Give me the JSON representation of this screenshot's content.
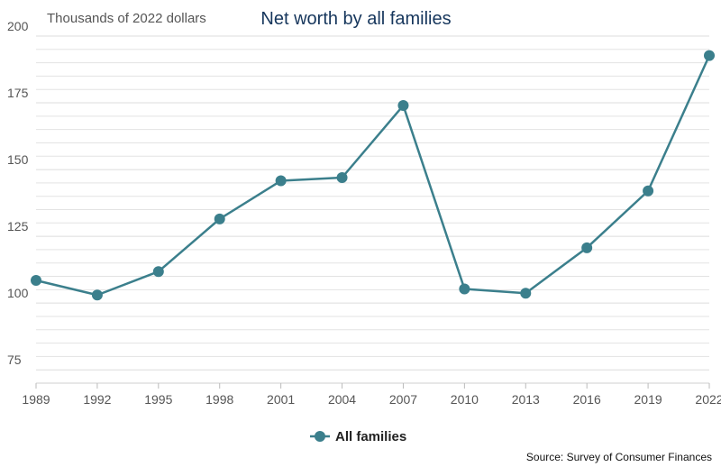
{
  "chart_data": {
    "type": "line",
    "title": "Net worth by all families",
    "ylabel": "Thousands of 2022 dollars",
    "xlabel": "",
    "x": [
      "1989",
      "1992",
      "1995",
      "1998",
      "2001",
      "2004",
      "2007",
      "2010",
      "2013",
      "2016",
      "2019",
      "2022"
    ],
    "series": [
      {
        "name": "All families",
        "values": [
          108.5,
          103.0,
          111.8,
          131.5,
          145.8,
          147.0,
          174.0,
          105.3,
          103.7,
          120.7,
          142.0,
          192.7
        ]
      }
    ],
    "ylim": [
      70,
      200
    ],
    "yticks": [
      75,
      100,
      125,
      150,
      175,
      200
    ],
    "grid": true,
    "legend": "bottom-center",
    "colors": {
      "series": "#3b7f8c",
      "grid": "#e3e3e3",
      "title": "#16365c"
    }
  },
  "source": "Source: Survey of Consumer Finances"
}
